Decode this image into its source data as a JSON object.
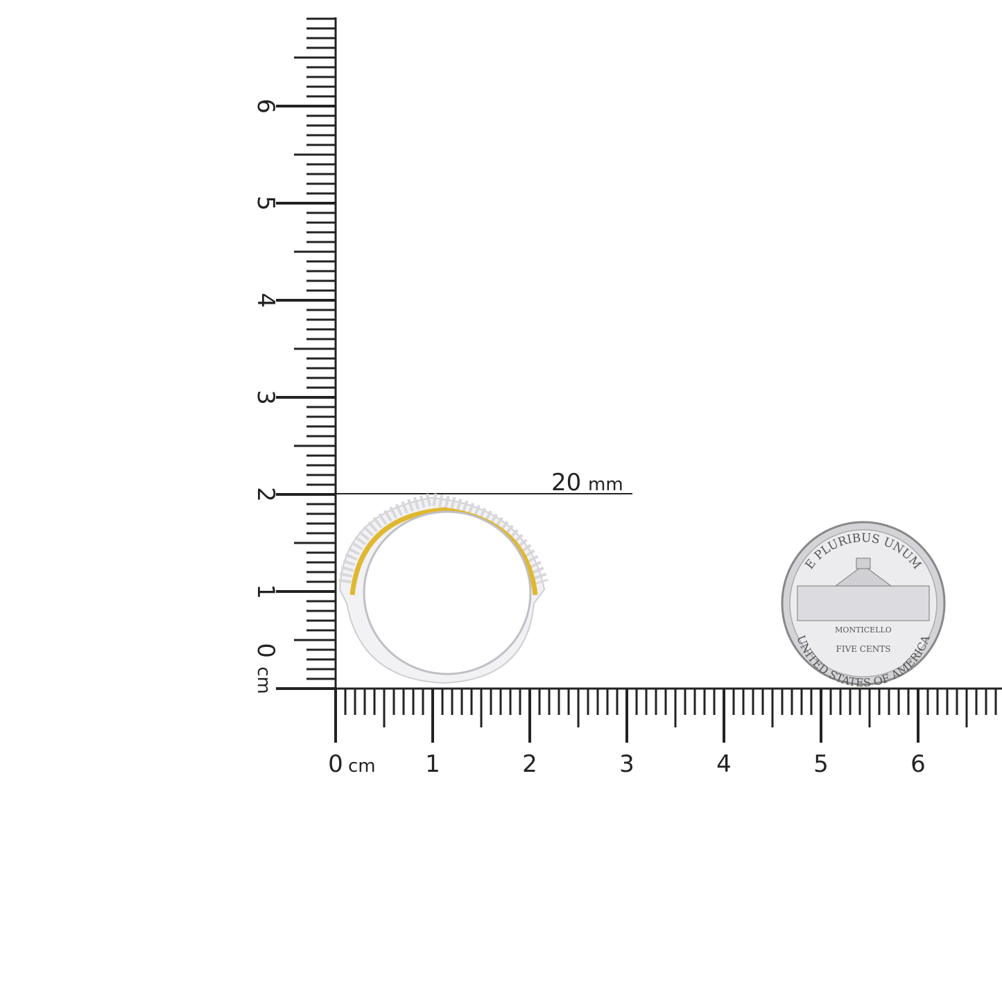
{
  "vertical_ruler": {
    "unit": "cm",
    "labels": [
      "0",
      "1",
      "2",
      "3",
      "4",
      "5",
      "6"
    ]
  },
  "horizontal_ruler": {
    "unit": "cm",
    "labels": [
      "0",
      "1",
      "2",
      "3",
      "4",
      "5",
      "6"
    ]
  },
  "measurement": {
    "value": "20",
    "unit": "mm"
  },
  "coin": {
    "top_text": "E PLURIBUS UNUM",
    "building": "MONTICELLO",
    "denomination": "FIVE CENTS",
    "bottom_text": "UNITED STATES OF AMERICA"
  },
  "colors": {
    "ruler": "#222222",
    "ring_metal": "#e8e8ea",
    "ring_gold": "#e0b830",
    "coin": "#c8c8cc"
  }
}
